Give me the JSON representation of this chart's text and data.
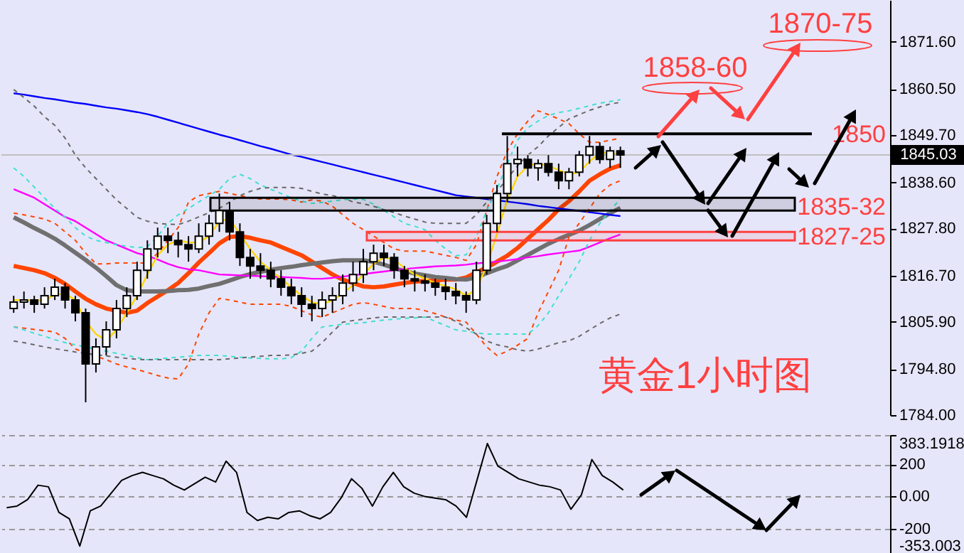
{
  "chart_data": [
    {
      "type": "candlestick",
      "categories": [
        null,
        null,
        null,
        null,
        null,
        null,
        null,
        null,
        null,
        null,
        null,
        null,
        null,
        null,
        null,
        null,
        null,
        null,
        null,
        null,
        null,
        null,
        null,
        null,
        null,
        null,
        null,
        null,
        null,
        null,
        null,
        null,
        null,
        null,
        null,
        null,
        null,
        null,
        null,
        null,
        null,
        null,
        null,
        null,
        null,
        null,
        null,
        null,
        null,
        null,
        null,
        null,
        null,
        null,
        null,
        null,
        null,
        null,
        null,
        null
      ],
      "ohlc": [
        [
          1809,
          1812,
          1808,
          1810.5
        ],
        [
          1810.5,
          1813,
          1809,
          1811
        ],
        [
          1811,
          1812,
          1808,
          1810
        ],
        [
          1810,
          1814,
          1809,
          1812
        ],
        [
          1812,
          1816,
          1811,
          1814
        ],
        [
          1814,
          1815,
          1809,
          1811
        ],
        [
          1811,
          1812,
          1806,
          1808
        ],
        [
          1808,
          1809,
          1787,
          1796
        ],
        [
          1796,
          1802,
          1794,
          1800
        ],
        [
          1800,
          1806,
          1798,
          1804
        ],
        [
          1804,
          1811,
          1802,
          1809
        ],
        [
          1809,
          1814,
          1807,
          1812
        ],
        [
          1812,
          1820,
          1811,
          1818
        ],
        [
          1818,
          1825,
          1816,
          1823
        ],
        [
          1823,
          1828,
          1821,
          1826
        ],
        [
          1826,
          1828,
          1822,
          1825
        ],
        [
          1825,
          1827,
          1821,
          1824
        ],
        [
          1824,
          1826,
          1820,
          1823
        ],
        [
          1823,
          1829,
          1822,
          1826
        ],
        [
          1826,
          1831,
          1824,
          1829
        ],
        [
          1829,
          1836,
          1827,
          1832
        ],
        [
          1832,
          1834,
          1825,
          1827
        ],
        [
          1827,
          1829,
          1819,
          1821
        ],
        [
          1821,
          1823,
          1816,
          1819
        ],
        [
          1819,
          1822,
          1816,
          1818
        ],
        [
          1818,
          1820,
          1814,
          1816
        ],
        [
          1816,
          1818,
          1812,
          1814
        ],
        [
          1814,
          1816,
          1810,
          1812
        ],
        [
          1812,
          1814,
          1807,
          1810
        ],
        [
          1810,
          1812,
          1806,
          1809
        ],
        [
          1809,
          1813,
          1807,
          1811
        ],
        [
          1811,
          1814,
          1808,
          1812
        ],
        [
          1812,
          1817,
          1810,
          1815
        ],
        [
          1815,
          1820,
          1813,
          1817
        ],
        [
          1817,
          1823,
          1815,
          1820
        ],
        [
          1820,
          1824,
          1818,
          1822
        ],
        [
          1822,
          1824,
          1819,
          1821
        ],
        [
          1821,
          1822,
          1816,
          1818
        ],
        [
          1818,
          1819,
          1814,
          1816
        ],
        [
          1816,
          1818,
          1813,
          1815.5
        ],
        [
          1815.5,
          1817,
          1813,
          1815
        ],
        [
          1815,
          1816,
          1812,
          1814
        ],
        [
          1814,
          1816,
          1811,
          1813
        ],
        [
          1813,
          1815,
          1810,
          1812
        ],
        [
          1812,
          1813,
          1808,
          1811
        ],
        [
          1811,
          1820,
          1810,
          1818
        ],
        [
          1818,
          1831,
          1817,
          1829
        ],
        [
          1829,
          1838,
          1827,
          1836
        ],
        [
          1836,
          1849.5,
          1834,
          1843
        ],
        [
          1843,
          1847,
          1840,
          1844
        ],
        [
          1844,
          1845,
          1840,
          1842
        ],
        [
          1842,
          1844,
          1839,
          1843
        ],
        [
          1843,
          1845,
          1840,
          1841
        ],
        [
          1841,
          1843,
          1837,
          1839
        ],
        [
          1839,
          1842,
          1837,
          1841
        ],
        [
          1841,
          1846,
          1840,
          1845
        ],
        [
          1845,
          1849.5,
          1843,
          1847
        ],
        [
          1847,
          1848,
          1843,
          1844
        ],
        [
          1844,
          1847,
          1842,
          1846
        ],
        [
          1846,
          1847,
          1842,
          1845.03
        ]
      ],
      "series": [
        {
          "type": "line",
          "color": "#ff4500",
          "values": [
            1819,
            1818.5,
            1818,
            1817.3,
            1816.2,
            1814.8,
            1813,
            1811.3,
            1810,
            1809,
            1808.5,
            1808,
            1808.5,
            1810.3,
            1811.8,
            1813.3,
            1815,
            1817.3,
            1819.8,
            1822,
            1824.3,
            1825.8,
            1826,
            1825.6,
            1825,
            1824.5,
            1823.5,
            1822.5,
            1821.5,
            1820,
            1818.5,
            1817,
            1815.8,
            1815,
            1814.2,
            1814,
            1814.2,
            1814.6,
            1815,
            1815.3,
            1815.5,
            1815.6,
            1815.8,
            1815.8,
            1816.3,
            1817.5,
            1818.6,
            1820,
            1821.4,
            1823.2,
            1825.4,
            1827.6,
            1829.8,
            1832.3,
            1834.2,
            1836.5,
            1839,
            1840.5,
            1841.8,
            1842.6
          ]
        },
        {
          "type": "line",
          "color": "#707070",
          "values": [
            1830.4,
            1829.2,
            1827.9,
            1826.7,
            1825.4,
            1823.8,
            1822.1,
            1820.4,
            1818.6,
            1816.6,
            1814.5,
            1813.3,
            1813,
            1813,
            1813,
            1813.1,
            1813.3,
            1813.4,
            1813.7,
            1814.3,
            1814.8,
            1815.6,
            1816.4,
            1817.1,
            1817.6,
            1818.1,
            1818.5,
            1818.8,
            1819.2,
            1819.5,
            1819.8,
            1820.1,
            1820.3,
            1820.3,
            1820.3,
            1820,
            1819.3,
            1818.5,
            1817.8,
            1817.2,
            1816.8,
            1816.4,
            1816.2,
            1815.9,
            1815.8,
            1816.3,
            1817.3,
            1818.2,
            1819,
            1820.3,
            1821.6,
            1822.9,
            1824.2,
            1825.3,
            1826.3,
            1827.3,
            1828.6,
            1830,
            1831.4,
            1832.6
          ]
        },
        {
          "type": "line",
          "color": "#0000ff",
          "values": [
            1859.5,
            1859.2,
            1858.8,
            1858.4,
            1858.1,
            1857.7,
            1857.3,
            1857,
            1856.6,
            1856.2,
            1855.9,
            1855.5,
            1855.1,
            1854.6,
            1854,
            1853.3,
            1852.6,
            1851.9,
            1851.2,
            1850.5,
            1849.8,
            1849.2,
            1848.5,
            1847.8,
            1847.1,
            1846.5,
            1845.8,
            1845.1,
            1844.6,
            1844,
            1843.4,
            1842.8,
            1842.2,
            1841.6,
            1841,
            1840.4,
            1839.8,
            1839.2,
            1838.6,
            1838,
            1837.4,
            1836.8,
            1836.2,
            1835.6,
            1835.3,
            1835,
            1834.7,
            1834.4,
            1834.1,
            1833.8,
            1833.5,
            1833.1,
            1832.8,
            1832.5,
            1832.2,
            1831.9,
            1831.6,
            1831.3,
            1831,
            1830.7
          ]
        },
        {
          "type": "line",
          "color": "#ff00ff",
          "values": [
            1837,
            1836,
            1835,
            1833.5,
            1832,
            1830.5,
            1829.5,
            1828,
            1826.5,
            1825,
            1824,
            1823,
            1822,
            1821.4,
            1820.5,
            1819.5,
            1818.7,
            1818.2,
            1818,
            1817.5,
            1817,
            1816.9,
            1816.8,
            1816.7,
            1816.6,
            1816.5,
            1816.4,
            1816.3,
            1816.2,
            1816,
            1816,
            1816.2,
            1816.5,
            1816.8,
            1817.1,
            1817.4,
            1817.7,
            1818,
            1818.3,
            1818.5,
            1818.7,
            1818.9,
            1819,
            1819.1,
            1819.3,
            1819.6,
            1819.8,
            1820,
            1820.3,
            1820.6,
            1821,
            1821.3,
            1821.7,
            1822,
            1822.3,
            1822.6,
            1823.5,
            1824.5,
            1825.5,
            1826.4
          ]
        },
        {
          "type": "line",
          "color": "#ffd700",
          "values": [
            1811,
            1811,
            1810.8,
            1811,
            1812.2,
            1812.5,
            1811,
            1806,
            1803,
            1801.5,
            1804,
            1808,
            1812,
            1817,
            1821.5,
            1824,
            1825,
            1824.5,
            1824.5,
            1826,
            1829.5,
            1830,
            1826.5,
            1823,
            1820,
            1818,
            1816,
            1814,
            1812,
            1810.5,
            1810,
            1811,
            1812.5,
            1814.5,
            1817,
            1819.5,
            1821,
            1820.5,
            1818.5,
            1817,
            1816,
            1815,
            1814.3,
            1813.5,
            1812,
            1813.5,
            1819,
            1826.5,
            1834.5,
            1840,
            1842.5,
            1843,
            1842.5,
            1841.5,
            1840.5,
            1841,
            1843.5,
            1845.5,
            1845.5,
            1845
          ]
        },
        {
          "type": "line",
          "color": "#ff4500",
          "line_style": "dashed",
          "values": [
            1831.4,
            1831,
            1830.5,
            1830,
            1829,
            1827,
            1825,
            1822,
            1819.5,
            1819.5,
            1819.7,
            1819.7,
            1819.7,
            1819.7,
            1822,
            1825,
            1828,
            1834,
            1835.5,
            1836,
            1836.5,
            1836,
            1835.5,
            1835,
            1834.7,
            1834.7,
            1834.7,
            1834.5,
            1834,
            1834.5,
            1834.2,
            1833,
            1831,
            1829,
            1827.5,
            1826,
            1824.5,
            1823,
            1822.5,
            1822.5,
            1822.5,
            1822,
            1821.5,
            1821,
            1820.3,
            1824,
            1832,
            1840,
            1846,
            1850,
            1853,
            1855.4,
            1854.5,
            1853.5,
            1852.4,
            1850,
            1848,
            1848,
            1848.5,
            1849
          ]
        },
        {
          "type": "line",
          "color": "#ff4500",
          "line_style": "dashed",
          "values": [
            1804.7,
            1804.4,
            1804.1,
            1803.8,
            1803.5,
            1802,
            1799.5,
            null,
            1797.8,
            1797,
            1796,
            1795.3,
            1794.7,
            1794,
            1793.3,
            1792.7,
            1792.5,
            1796,
            1803,
            1808,
            1811.4,
            1811,
            1810.5,
            1810,
            1810,
            1810,
            1810,
            1809.5,
            1808.5,
            1807.5,
            1807,
            1808,
            1809,
            1810,
            1810.4,
            1810,
            1809.5,
            1809,
            1809,
            1809,
            1808.5,
            1807.8,
            1807,
            1806.3,
            1805.8,
            1803,
            1800,
            1798,
            1799,
            1800.4,
            1802,
            1808,
            1813,
            1818,
            1825.8,
            1829,
            1832.5,
            1836,
            1838,
            1839
          ]
        },
        {
          "type": "line",
          "color": "#40e0d0",
          "line_style": "dashed",
          "values": [
            1842,
            1840,
            1837.5,
            1835,
            1832.5,
            1830.5,
            1828,
            1826,
            1825,
            1824.5,
            1824,
            1823.6,
            1823.3,
            1823.5,
            1826,
            1829,
            1831,
            1832.5,
            1834,
            1835.5,
            1837,
            1839.5,
            1840.5,
            1839.5,
            1838,
            1837,
            1836,
            1835,
            1834.2,
            1833.7,
            1833.9,
            1834.2,
            1834.5,
            1834.7,
            1834.6,
            1833.5,
            1832,
            1830.5,
            1829,
            1828.3,
            1827.5,
            1825,
            1823,
            1821.4,
            1821.6,
            1826,
            1832,
            1837,
            1843,
            1848.5,
            1851.4,
            1853,
            1854.3,
            1855,
            1855.4,
            1856,
            1856.6,
            1857.2,
            1857.6,
            1858
          ]
        },
        {
          "type": "line",
          "color": "#40e0d0",
          "line_style": "dashed",
          "values": [
            1804.7,
            1804,
            1803.2,
            1802.5,
            1801.7,
            1801,
            1800.5,
            1800,
            1799.5,
            1799,
            1798.5,
            1798,
            1797.5,
            1797,
            1797.2,
            1797.4,
            1797.6,
            1797.8,
            1798,
            1798,
            1798,
            1797.8,
            1797.6,
            1797.4,
            1797.3,
            1797.2,
            1797.2,
            1797.5,
            1799,
            1802,
            1804.7,
            1805,
            1805.3,
            1805.5,
            1805.7,
            1806,
            1806.3,
            1806.5,
            1806.7,
            1806.8,
            1807,
            1806,
            1805,
            1804,
            1803.7,
            1803.3,
            1803,
            1803,
            1803,
            1803,
            1803,
            1805,
            1808,
            1812,
            1816,
            1820,
            1825,
            1829,
            1832,
            1834.7
          ]
        },
        {
          "type": "line",
          "color": "#696969",
          "line_style": "dashed",
          "values": [
            1860.4,
            1858.5,
            1856.5,
            1854,
            1852,
            1849,
            1845,
            1842,
            1839.5,
            1837,
            1834.5,
            1832.5,
            1830.4,
            1829.5,
            1829,
            1828.8,
            1828.7,
            1829.5,
            1830.5,
            1831.5,
            1832.5,
            1834,
            1835.5,
            1836.5,
            1837.2,
            1837.4,
            1837.4,
            1837.4,
            1837.2,
            1836.5,
            1835.9,
            1835.5,
            1835,
            1834,
            1833.6,
            1833,
            1832.2,
            1831.5,
            1830.7,
            1830,
            1829.3,
            1829,
            1829,
            1829,
            1829,
            1831,
            1834,
            1836.5,
            1839.5,
            1842.5,
            1845,
            1847,
            1849.5,
            1851.5,
            1853.5,
            1854.5,
            1855.5,
            1856.3,
            1857,
            1857.4
          ]
        },
        {
          "type": "line",
          "color": "#696969",
          "line_style": "dashed",
          "values": [
            1801.4,
            1801,
            1800.5,
            1800,
            1799.6,
            1799.2,
            1798.8,
            1798.5,
            1798.2,
            1797.9,
            1797.6,
            1797.3,
            1797.1,
            1797,
            1797,
            1797,
            1797,
            1797,
            1797,
            1797,
            1797,
            1797.2,
            1797.4,
            1797.6,
            1797.8,
            1798,
            1798,
            1798.1,
            1798.5,
            1799,
            1801,
            1803.5,
            1805.8,
            1806.2,
            1806.5,
            1806.8,
            1807,
            1807,
            1807,
            1807,
            1807,
            1807,
            1807,
            1806,
            1804.5,
            1803,
            1801.4,
            1800.5,
            1800,
            1799.3,
            1799,
            1799.5,
            1800.2,
            1801,
            1801.4,
            1802.5,
            1804,
            1805.5,
            1806.8,
            1807.7
          ]
        }
      ],
      "ylim": [
        1784,
        1881.4
      ],
      "yticks": [
        {
          "value": 1784,
          "label": "1784.00"
        },
        {
          "value": 1794.8,
          "label": "1794.80"
        },
        {
          "value": 1805.9,
          "label": "1805.90"
        },
        {
          "value": 1816.7,
          "label": "1816.70"
        },
        {
          "value": 1827.8,
          "label": "1827.80"
        },
        {
          "value": 1838.6,
          "label": "1838.60"
        },
        {
          "value": 1849.7,
          "label": "1849.70"
        },
        {
          "value": 1860.5,
          "label": "1860.50"
        },
        {
          "value": 1871.6,
          "label": "1871.60"
        }
      ],
      "tick_labels": "y",
      "ref_lines": [
        {
          "axis": "y",
          "value": 1845.03,
          "label": "1845.03",
          "color": "#c0c0c0"
        },
        {
          "axis": "y",
          "value": 1850,
          "label": "1850",
          "color": "#000000"
        }
      ],
      "bands": [
        {
          "axis": "y",
          "from": 1832,
          "to": 1835,
          "label": "1835-32",
          "color": "#000000"
        },
        {
          "axis": "y",
          "from": 1825,
          "to": 1827,
          "label": "1827-25",
          "color": "#ff4040"
        }
      ],
      "annotations": [
        "1858-60",
        "1870-75",
        "黄金1小时图"
      ]
    },
    {
      "type": "line",
      "categories": [
        null,
        null,
        null,
        null,
        null,
        null,
        null,
        null,
        null,
        null,
        null,
        null,
        null,
        null,
        null,
        null,
        null,
        null,
        null,
        null,
        null,
        null,
        null,
        null,
        null,
        null,
        null,
        null,
        null,
        null,
        null,
        null,
        null,
        null,
        null,
        null,
        null,
        null,
        null,
        null,
        null,
        null,
        null,
        null,
        null,
        null,
        null,
        null,
        null,
        null,
        null,
        null,
        null,
        null,
        null,
        null,
        null,
        null,
        null,
        null
      ],
      "values": [
        -70,
        -60,
        -20,
        70,
        60,
        -100,
        -140,
        -310,
        -90,
        -60,
        20,
        100,
        130,
        150,
        130,
        110,
        70,
        40,
        80,
        120,
        90,
        220,
        150,
        -100,
        -150,
        -130,
        -140,
        -100,
        -90,
        -120,
        -140,
        -100,
        -10,
        110,
        50,
        -60,
        60,
        150,
        60,
        20,
        0,
        -10,
        -20,
        -60,
        -130,
        100,
        330,
        190,
        150,
        110,
        90,
        70,
        60,
        40,
        -80,
        10,
        230,
        130,
        90,
        40
      ],
      "color": "#000000",
      "ylim": [
        -353.003,
        383.1918
      ],
      "yticks": [
        {
          "value": -353.003,
          "label": "-353.003"
        },
        -200,
        {
          "value": 0,
          "label": "0.00"
        },
        200,
        {
          "value": 383.1918,
          "label": "383.1918"
        }
      ],
      "grid": "y",
      "tick_labels": "y"
    }
  ]
}
